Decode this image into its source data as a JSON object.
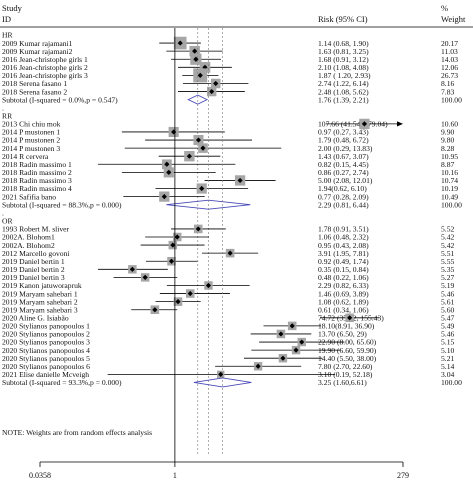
{
  "header": {
    "study": "Study",
    "id": "ID",
    "risk": "Risk (95% CI)",
    "percent": "%",
    "weight": "Weight"
  },
  "note": "NOTE: Weights are from random effects analysis",
  "chart_data": {
    "type": "forest",
    "x_scale": "log",
    "x_ticks": [
      0.0358,
      1,
      279
    ],
    "x_tick_labels": [
      "0.0358",
      "1",
      "279"
    ],
    "reference_line": 1,
    "groups": [
      {
        "label": "HR",
        "studies": [
          {
            "id": "2009 Kumar rajamani1",
            "est": 1.14,
            "lo": 0.68,
            "hi": 1.9,
            "ci_text": "1.14 (0.68, 1.90)",
            "weight": "20.17"
          },
          {
            "id": "2009 Kumar rajamani2",
            "est": 1.63,
            "lo": 0.81,
            "hi": 3.25,
            "ci_text": "1.63 (0.81, 3.25)",
            "weight": "11.03"
          },
          {
            "id": "2016 Jean-christophe girls 1",
            "est": 1.68,
            "lo": 0.91,
            "hi": 3.12,
            "ci_text": "1.68 (0.91, 3.12)",
            "weight": "14.03"
          },
          {
            "id": "2016 Jean-christophe girls 2",
            "est": 2.1,
            "lo": 1.08,
            "hi": 4.08,
            "ci_text": "2.10 (1.08, 4.08)",
            "weight": "12.06"
          },
          {
            "id": "2016 Jean-christophe girls 3",
            "est": 1.87,
            "lo": 1.2,
            "hi": 2.93,
            "ci_text": "1.87 ( 1.20, 2.93)",
            "weight": "26.73"
          },
          {
            "id": "2018 Serena fasano 1",
            "est": 2.74,
            "lo": 1.22,
            "hi": 6.14,
            "ci_text": "2.74 (1.22, 6.14)",
            "weight": "8.16"
          },
          {
            "id": "2018 Serena fasano 2",
            "est": 2.48,
            "lo": 1.08,
            "hi": 5.62,
            "ci_text": "2.48 (1.08, 5.62)",
            "weight": "7.83"
          }
        ],
        "subtotal": {
          "label": "Subtotal (I-squared = 0.0%,p = 0.547)",
          "est": 1.76,
          "lo": 1.39,
          "hi": 2.21,
          "ci_text": "1.76 (1.39, 2.21)",
          "weight": "100.00"
        }
      },
      {
        "label": "RR",
        "studies": [
          {
            "id": "2013 Chi chiu mok",
            "est": 107.66,
            "lo": 41.54,
            "hi": 279.04,
            "ci_text": "107.66 (41.54, 279.04)",
            "weight": "10.60",
            "arrow": true
          },
          {
            "id": "2014 P mustonen 1",
            "est": 0.97,
            "lo": 0.27,
            "hi": 3.43,
            "ci_text": "0.97 (0.27, 3.43)",
            "weight": "9.90"
          },
          {
            "id": "2014 P mustonen 2",
            "est": 1.79,
            "lo": 0.48,
            "hi": 6.72,
            "ci_text": "1.79 (0.48, 6.72)",
            "weight": "9.80"
          },
          {
            "id": "2014 P mustonen 3",
            "est": 2.0,
            "lo": 0.29,
            "hi": 13.83,
            "ci_text": "2.00 (0.29, 13.83)",
            "weight": "8.28"
          },
          {
            "id": "2014 R cervera",
            "est": 1.43,
            "lo": 0.67,
            "hi": 3.07,
            "ci_text": "1.43 (0.67, 3.07)",
            "weight": "10.95"
          },
          {
            "id": "2018 Radin massimo 1",
            "est": 0.82,
            "lo": 0.15,
            "hi": 4.45,
            "ci_text": "0.82 (0.15, 4.45)",
            "weight": "8.87"
          },
          {
            "id": "2018 Radin massimo 2",
            "est": 0.86,
            "lo": 0.27,
            "hi": 2.74,
            "ci_text": "0.86 (0.27, 2.74)",
            "weight": "10.16"
          },
          {
            "id": "2018 Radin massimo 3",
            "est": 5.0,
            "lo": 2.08,
            "hi": 12.01,
            "ci_text": "5.00 (2.08, 12.01)",
            "weight": "10.74"
          },
          {
            "id": "2018 Radin massimo 4",
            "est": 1.94,
            "lo": 0.62,
            "hi": 6.1,
            "ci_text": "1.94(0.62, 6.10)",
            "weight": "10.19"
          },
          {
            "id": "2021 Safifia bano",
            "est": 0.77,
            "lo": 0.28,
            "hi": 2.09,
            "ci_text": "0.77 (0.28, 2.09)",
            "weight": "10.49"
          }
        ],
        "subtotal": {
          "label": "Subtotal (I-squared = 88.3%,p = 0.000)",
          "est": 2.29,
          "lo": 0.81,
          "hi": 6.44,
          "ci_text": "2.29 (0.81, 6.44)",
          "weight": "100.00"
        }
      },
      {
        "label": "OR",
        "studies": [
          {
            "id": "1993 Robert M. sliver",
            "est": 1.78,
            "lo": 0.91,
            "hi": 3.51,
            "ci_text": "1.78 (0.91, 3.51)",
            "weight": "5.52"
          },
          {
            "id": "2002A. Blohom1",
            "est": 1.06,
            "lo": 0.48,
            "hi": 2.32,
            "ci_text": "1.06 (0.48, 2.32)",
            "weight": "5.42"
          },
          {
            "id": "2002A. Blohom2",
            "est": 0.95,
            "lo": 0.43,
            "hi": 2.08,
            "ci_text": "0.95 (0.43, 2.08)",
            "weight": "5.42"
          },
          {
            "id": "2012 Marcello govoni",
            "est": 3.91,
            "lo": 1.95,
            "hi": 7.81,
            "ci_text": "3.91 (1.95, 7.81)",
            "weight": "5.51"
          },
          {
            "id": "2019 Daniel bertin 1",
            "est": 0.92,
            "lo": 0.49,
            "hi": 1.74,
            "ci_text": "0.92 (0.49, 1.74)",
            "weight": "5.55"
          },
          {
            "id": "2019 Daniel bertin 2",
            "est": 0.35,
            "lo": 0.15,
            "hi": 0.84,
            "ci_text": "0.35 (0.15, 0.84)",
            "weight": "5.35"
          },
          {
            "id": "2019 Daniel bertin 3",
            "est": 0.48,
            "lo": 0.22,
            "hi": 1.06,
            "ci_text": "0.48 (0.22, 1.06)",
            "weight": "5.27"
          },
          {
            "id": "2019 Kanon jatuworapruk",
            "est": 2.29,
            "lo": 0.82,
            "hi": 6.33,
            "ci_text": "2.29 (0.82, 6.33)",
            "weight": "5.19"
          },
          {
            "id": "2019 Maryam sahebari 1",
            "est": 1.46,
            "lo": 0.69,
            "hi": 3.89,
            "ci_text": "1.46 (0.69, 3.89)",
            "weight": "5.46"
          },
          {
            "id": "2019 Maryam sahebari 2",
            "est": 1.08,
            "lo": 0.62,
            "hi": 1.89,
            "ci_text": "1.08 (0.62, 1.89)",
            "weight": "5.61"
          },
          {
            "id": "2019 Maryam sahebari 3",
            "est": 0.61,
            "lo": 0.34,
            "hi": 1.06,
            "ci_text": "0.61 (0.34, 1.06)",
            "weight": "5.60"
          },
          {
            "id": "2020 Aline G. Isiabão",
            "est": 74.72,
            "lo": 35.92,
            "hi": 155.43,
            "ci_text": "74.72 (35.92, 155.43)",
            "weight": "5.47"
          },
          {
            "id": "2020 Stylianos panopoulos 1",
            "est": 18.1,
            "lo": 8.91,
            "hi": 36.9,
            "ci_text": "18.10(8.91, 36.90)",
            "weight": "5.49"
          },
          {
            "id": "2020 Stylianos panopoulos 2",
            "est": 13.7,
            "lo": 6.5,
            "hi": 29.0,
            "ci_text": "13.70 (6.50, 29)",
            "weight": "5.46"
          },
          {
            "id": "2020 Stylianos panopoulos 3",
            "est": 22.9,
            "lo": 8.0,
            "hi": 65.6,
            "ci_text": "22.90 (8.00, 65.60)",
            "weight": "5.15"
          },
          {
            "id": "2020 Stylianos panopoulos 4",
            "est": 19.9,
            "lo": 6.6,
            "hi": 59.9,
            "ci_text": "19.90 (6.60, 59.90)",
            "weight": "5.10"
          },
          {
            "id": "2020 Stylianos panopoulos 5",
            "est": 14.4,
            "lo": 5.5,
            "hi": 38.0,
            "ci_text": "14.40 (5.50, 38.00)",
            "weight": "5.21"
          },
          {
            "id": "2020 Stylianos panopoulos 6",
            "est": 7.8,
            "lo": 2.7,
            "hi": 22.6,
            "ci_text": "7.80 (2.70, 22.60)",
            "weight": "5.14"
          },
          {
            "id": "2021 Elise danielle Mcveigh",
            "est": 3.1,
            "lo": 0.19,
            "hi": 52.18,
            "ci_text": "3.10 (0.19, 52.18)",
            "weight": "3.04"
          }
        ],
        "subtotal": {
          "label": "Subtotal (I-squared = 93.3%,p = 0.000)",
          "est": 3.25,
          "lo": 1.6,
          "hi": 6.61,
          "ci_text": "3.25 (1.60,6.61)",
          "weight": "100.00"
        }
      }
    ],
    "colors": {
      "box": "#a6a6a6",
      "diamond": "#4a4ab8",
      "line": "#000000"
    }
  }
}
